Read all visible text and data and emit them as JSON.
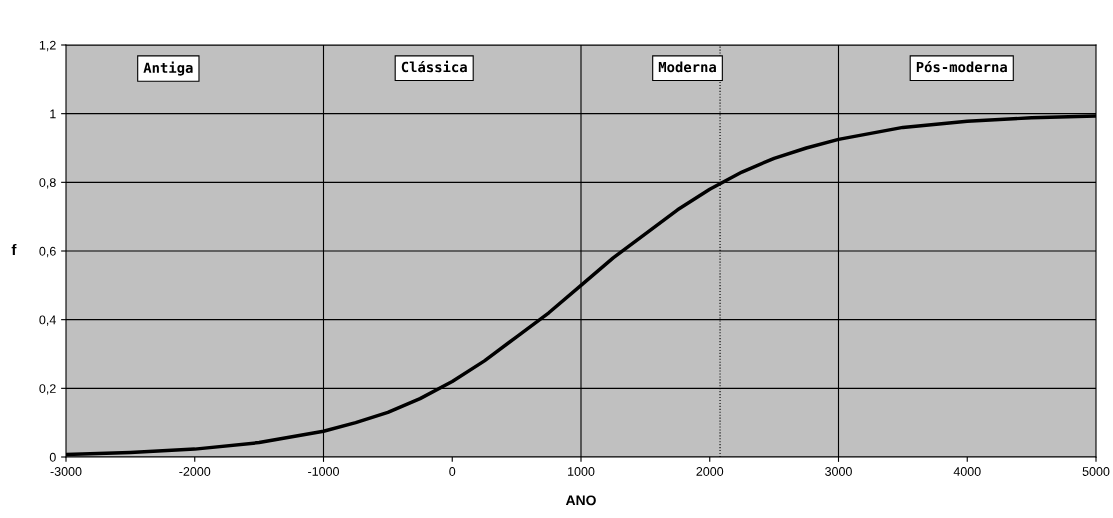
{
  "chart_data": {
    "type": "line",
    "xlabel": "ANO",
    "ylabel": "f",
    "xlim": [
      -3000,
      5000
    ],
    "xticks": [
      -3000,
      -2000,
      -1000,
      0,
      1000,
      2000,
      3000,
      4000,
      5000
    ],
    "ylim": [
      0,
      1.2
    ],
    "yticks": [
      0,
      {
        "value": 0.2,
        "label": "0,2"
      },
      {
        "value": 0.4,
        "label": "0,4"
      },
      {
        "value": 0.6,
        "label": "0,6"
      },
      {
        "value": 0.8,
        "label": "0,8"
      },
      1,
      {
        "value": 1.2,
        "label": "1,2"
      }
    ],
    "grid": "y",
    "legend": false,
    "marker": "none",
    "line_style": "solid",
    "series": [
      {
        "color": "#000000",
        "x": [
          -3000,
          -2500,
          -2000,
          -1500,
          -1000,
          -750,
          -500,
          -250,
          0,
          250,
          500,
          750,
          1000,
          1250,
          1500,
          1750,
          2000,
          2250,
          2500,
          2750,
          3000,
          3500,
          4000,
          4500,
          5000
        ],
        "values": [
          0.007,
          0.013,
          0.023,
          0.042,
          0.075,
          0.1,
          0.13,
          0.17,
          0.22,
          0.28,
          0.35,
          0.42,
          0.5,
          0.58,
          0.65,
          0.72,
          0.78,
          0.83,
          0.87,
          0.9,
          0.925,
          0.96,
          0.978,
          0.988,
          0.993
        ]
      }
    ],
    "bands": [
      {
        "axis": "x",
        "from": -3000,
        "to": -1000,
        "label": "Antiga",
        "color": "#c0c0c0"
      },
      {
        "axis": "x",
        "from": -1000,
        "to": 1000,
        "label": "Clássica",
        "color": "#c0c0c0"
      },
      {
        "axis": "x",
        "from": 1000,
        "to": 3000,
        "label": "Moderna",
        "color": "#c0c0c0"
      },
      {
        "axis": "x",
        "from": 3000,
        "to": 5000,
        "label": "Pós-moderna",
        "color": "#c0c0c0"
      }
    ],
    "ref_lines": [
      {
        "axis": "x",
        "value": -1000,
        "line_style": "solid",
        "color": "#000000"
      },
      {
        "axis": "x",
        "value": 1000,
        "line_style": "solid",
        "color": "#000000"
      },
      {
        "axis": "x",
        "value": 3000,
        "line_style": "solid",
        "color": "#000000"
      },
      {
        "axis": "x",
        "value": 2080,
        "line_style": "dotted",
        "color": "#000000"
      }
    ]
  }
}
